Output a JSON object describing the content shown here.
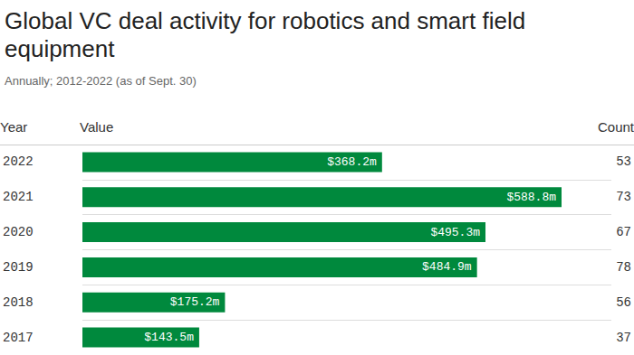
{
  "chart_data": {
    "type": "bar",
    "orientation": "horizontal",
    "title": "Global VC deal activity for robotics and smart field equipment",
    "subtitle": "Annually; 2012-2022 (as of Sept. 30)",
    "columns": [
      "Year",
      "Value",
      "Count"
    ],
    "categories": [
      "2022",
      "2021",
      "2020",
      "2019",
      "2018",
      "2017"
    ],
    "values": [
      368.2,
      588.8,
      495.3,
      484.9,
      175.2,
      143.5
    ],
    "value_labels": [
      "$368.2m",
      "$588.8m",
      "$495.3m",
      "$484.9m",
      "$175.2m",
      "$143.5m"
    ],
    "counts": [
      53,
      73,
      67,
      78,
      56,
      37
    ],
    "color": "#00893d",
    "xlim": [
      0,
      650
    ],
    "data_labels": true,
    "tick_labels": "y",
    "grid": true
  }
}
